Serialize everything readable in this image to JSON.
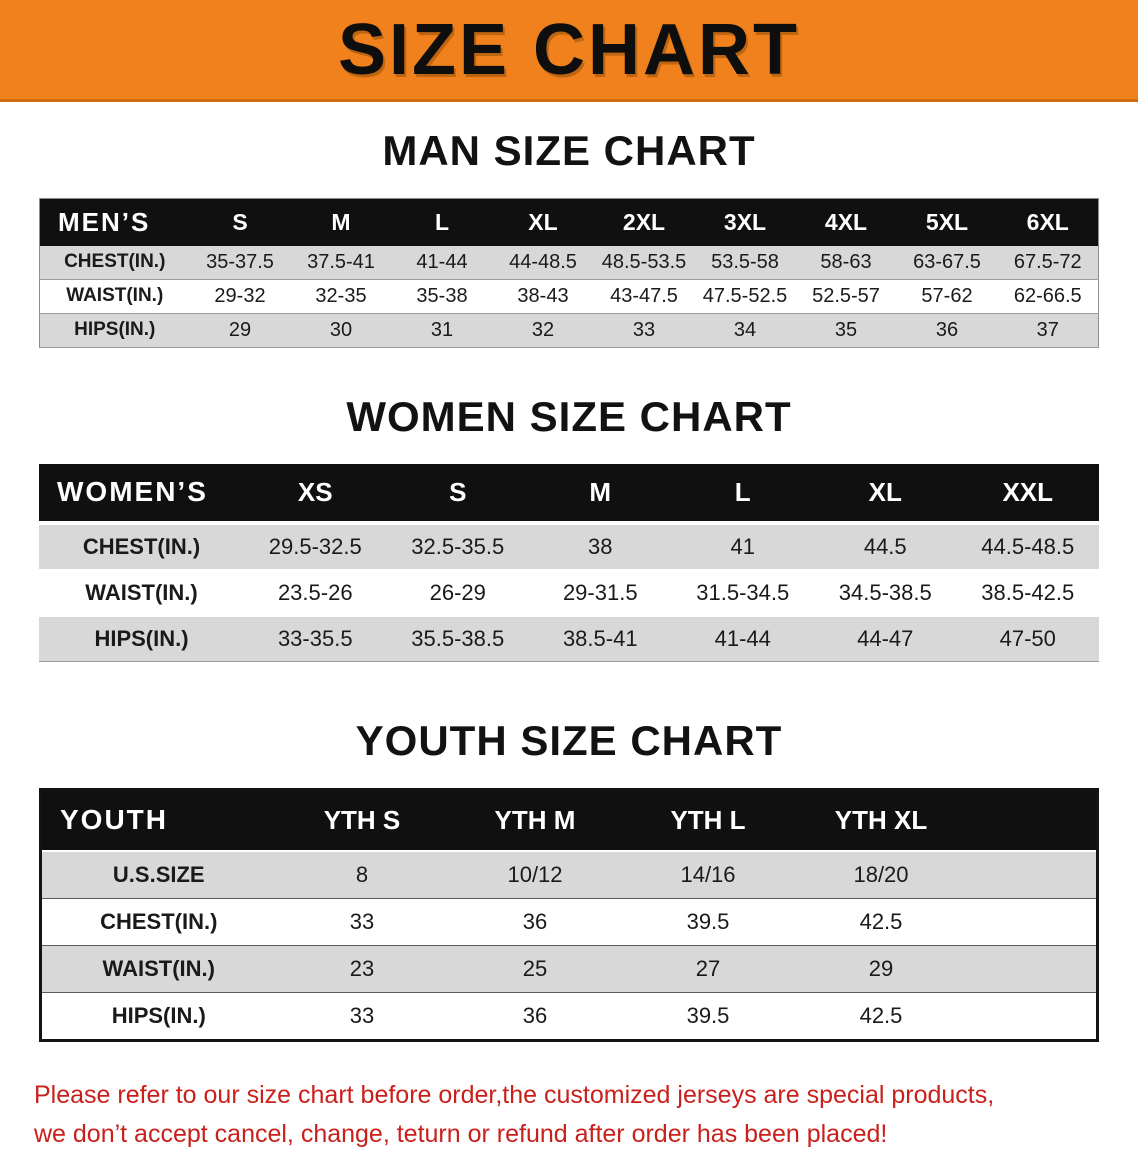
{
  "banner": {
    "title": "SIZE CHART"
  },
  "sections": [
    {
      "id": "men",
      "heading": "MAN SIZE CHART",
      "header": [
        "MEN’S",
        "S",
        "M",
        "L",
        "XL",
        "2XL",
        "3XL",
        "4XL",
        "5XL",
        "6XL"
      ],
      "rows": [
        {
          "label": "CHEST(IN.)",
          "values": [
            "35-37.5",
            "37.5-41",
            "41-44",
            "44-48.5",
            "48.5-53.5",
            "53.5-58",
            "58-63",
            "63-67.5",
            "67.5-72"
          ]
        },
        {
          "label": "WAIST(IN.)",
          "values": [
            "29-32",
            "32-35",
            "35-38",
            "38-43",
            "43-47.5",
            "47.5-52.5",
            "52.5-57",
            "57-62",
            "62-66.5"
          ]
        },
        {
          "label": "HIPS(IN.)",
          "values": [
            "29",
            "30",
            "31",
            "32",
            "33",
            "34",
            "35",
            "36",
            "37"
          ]
        }
      ]
    },
    {
      "id": "women",
      "heading": "WOMEN SIZE CHART",
      "header": [
        "WOMEN’S",
        "XS",
        "S",
        "M",
        "L",
        "XL",
        "XXL"
      ],
      "rows": [
        {
          "label": "CHEST(IN.)",
          "values": [
            "29.5-32.5",
            "32.5-35.5",
            "38",
            "41",
            "44.5",
            "44.5-48.5"
          ]
        },
        {
          "label": "WAIST(IN.)",
          "values": [
            "23.5-26",
            "26-29",
            "29-31.5",
            "31.5-34.5",
            "34.5-38.5",
            "38.5-42.5"
          ]
        },
        {
          "label": "HIPS(IN.)",
          "values": [
            "33-35.5",
            "35.5-38.5",
            "38.5-41",
            "41-44",
            "44-47",
            "47-50"
          ]
        }
      ]
    },
    {
      "id": "youth",
      "heading": "YOUTH SIZE CHART",
      "header": [
        "YOUTH",
        "YTH S",
        "YTH M",
        "YTH L",
        "YTH XL"
      ],
      "rows": [
        {
          "label": "U.S.SIZE",
          "values": [
            "8",
            "10/12",
            "14/16",
            "18/20"
          ]
        },
        {
          "label": "CHEST(IN.)",
          "values": [
            "33",
            "36",
            "39.5",
            "42.5"
          ]
        },
        {
          "label": "WAIST(IN.)",
          "values": [
            "23",
            "25",
            "27",
            "29"
          ]
        },
        {
          "label": "HIPS(IN.)",
          "values": [
            "33",
            "36",
            "39.5",
            "42.5"
          ]
        }
      ]
    }
  ],
  "footer": {
    "lines": [
      "Please refer to our size chart before order,the customized jerseys are special products,",
      "we don’t accept cancel, change, teturn or refund after order has been placed!"
    ]
  },
  "colors": {
    "banner_bg": "#F0811C",
    "table_header_bg": "#101010",
    "row_stripe": "#D8D8D8",
    "note_text": "#C9201C"
  }
}
